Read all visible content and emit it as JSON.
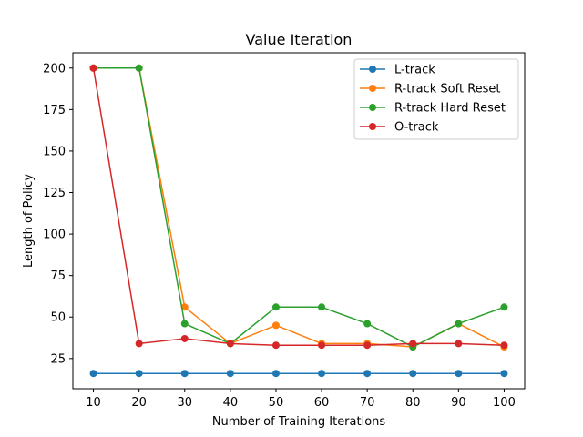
{
  "chart_data": {
    "type": "line",
    "title": "Value Iteration",
    "xlabel": "Number of Training Iterations",
    "ylabel": "Length of Policy",
    "x": [
      10,
      20,
      30,
      40,
      50,
      60,
      70,
      80,
      90,
      100
    ],
    "xticks": [
      10,
      20,
      30,
      40,
      50,
      60,
      70,
      80,
      90,
      100
    ],
    "yticks": [
      25,
      50,
      75,
      100,
      125,
      150,
      175,
      200
    ],
    "xlim": [
      5.5,
      104.5
    ],
    "ylim": [
      6.8,
      209.2
    ],
    "grid": false,
    "legend_position": "top-right",
    "series": [
      {
        "name": "L-track",
        "color": "#1f77b4",
        "values": [
          16,
          16,
          16,
          16,
          16,
          16,
          16,
          16,
          16,
          16
        ]
      },
      {
        "name": "R-track Soft Reset",
        "color": "#ff7f0e",
        "values": [
          200,
          200,
          56,
          34,
          45,
          34,
          34,
          32,
          46,
          32
        ]
      },
      {
        "name": "R-track Hard Reset",
        "color": "#2ca02c",
        "values": [
          200,
          200,
          46,
          34,
          56,
          56,
          46,
          32,
          46,
          56
        ]
      },
      {
        "name": "O-track",
        "color": "#d62728",
        "values": [
          200,
          34,
          37,
          34,
          33,
          33,
          33,
          34,
          34,
          33
        ]
      }
    ]
  }
}
